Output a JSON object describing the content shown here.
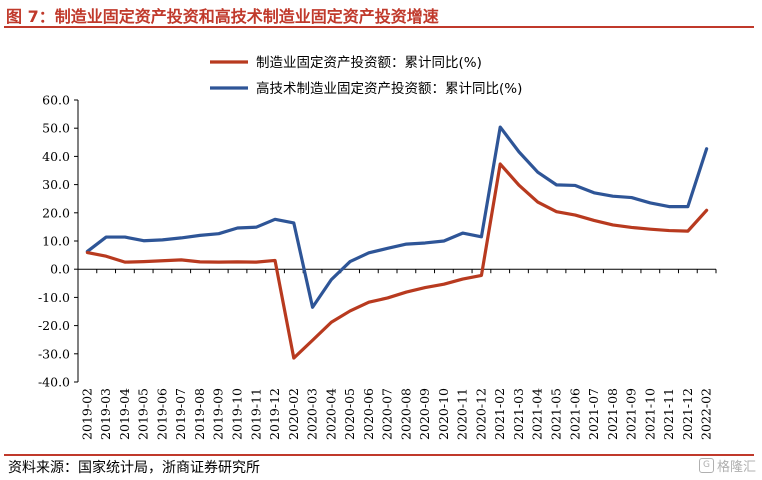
{
  "title": "图 7：制造业固定资产投资和高技术制造业固定资产投资增速",
  "source": "资料来源：国家统计局，浙商证券研究所",
  "watermark": "格隆汇",
  "colors": {
    "title": "#c0392b",
    "series1": "#b83a1f",
    "series2": "#2e5597"
  },
  "chart_data": {
    "type": "line",
    "ylim": [
      -40,
      60
    ],
    "ystep": 10,
    "grid": false,
    "legend_position": "top",
    "x": [
      "2019-02",
      "2019-03",
      "2019-04",
      "2019-05",
      "2019-06",
      "2019-07",
      "2019-08",
      "2019-09",
      "2019-10",
      "2019-11",
      "2019-12",
      "2020-02",
      "2020-03",
      "2020-04",
      "2020-05",
      "2020-06",
      "2020-07",
      "2020-08",
      "2020-09",
      "2020-10",
      "2020-11",
      "2020-12",
      "2021-02",
      "2021-03",
      "2021-04",
      "2021-05",
      "2021-06",
      "2021-07",
      "2021-08",
      "2021-09",
      "2021-10",
      "2021-11",
      "2021-12",
      "2022-02"
    ],
    "series": [
      {
        "name": "制造业固定资产投资额：累计同比(%)",
        "color": "#b83a1f",
        "values": [
          5.9,
          4.6,
          2.5,
          2.7,
          3.0,
          3.3,
          2.6,
          2.5,
          2.6,
          2.5,
          3.1,
          -31.5,
          -25.2,
          -18.8,
          -14.8,
          -11.7,
          -10.2,
          -8.1,
          -6.5,
          -5.3,
          -3.5,
          -2.2,
          37.3,
          29.8,
          23.8,
          20.4,
          19.2,
          17.3,
          15.7,
          14.8,
          14.2,
          13.7,
          13.5,
          20.9
        ]
      },
      {
        "name": "高技术制造业固定资产投资额：累计同比(%)",
        "color": "#2e5597",
        "values": [
          6.3,
          11.4,
          11.4,
          10.1,
          10.4,
          11.1,
          12.0,
          12.6,
          14.6,
          14.9,
          17.7,
          16.4,
          -13.5,
          -3.7,
          2.7,
          5.8,
          7.4,
          8.9,
          9.3,
          10.0,
          12.8,
          11.5,
          50.4,
          41.6,
          34.4,
          29.9,
          29.7,
          27.1,
          25.9,
          25.4,
          23.5,
          22.2,
          22.2,
          42.7
        ]
      }
    ]
  }
}
